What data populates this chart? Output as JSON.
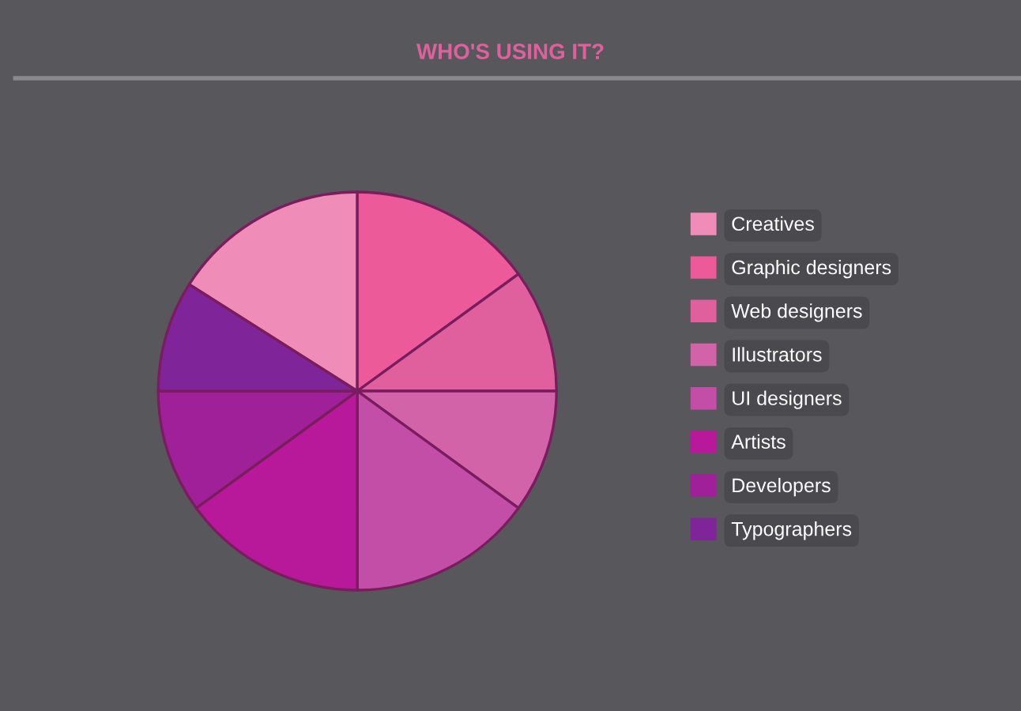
{
  "chart_data": {
    "type": "pie",
    "title": "WHO'S USING IT?",
    "categories": [
      "Creatives",
      "Graphic designers",
      "Web designers",
      "Illustrators",
      "UI designers",
      "Artists",
      "Developers",
      "Typographers"
    ],
    "values": [
      16,
      15,
      10,
      10,
      15,
      15,
      10,
      9
    ],
    "colors": [
      "#f08cb8",
      "#ec5a9a",
      "#e0609e",
      "#d263a8",
      "#c24ea8",
      "#b8189a",
      "#a0209a",
      "#80249a"
    ],
    "legend": "right"
  }
}
